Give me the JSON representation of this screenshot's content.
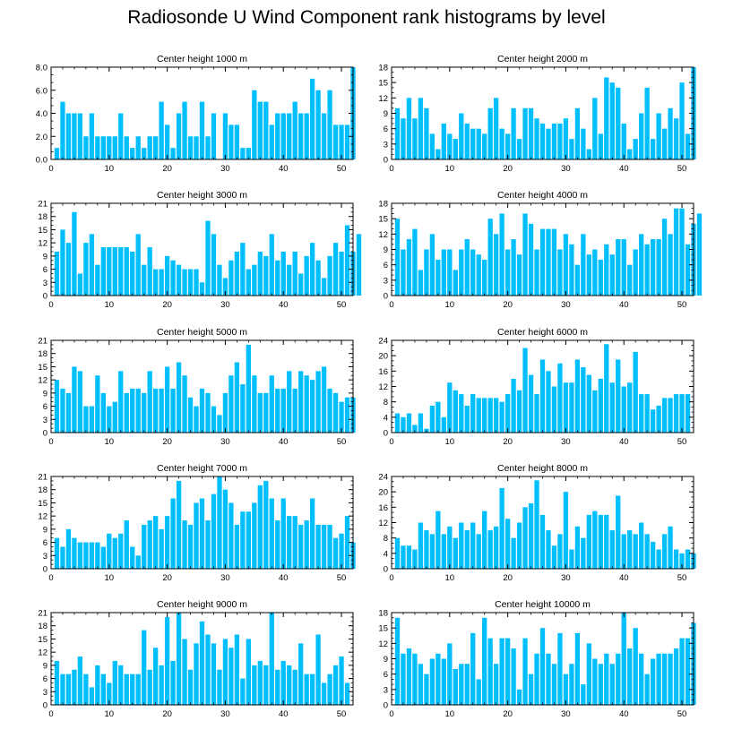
{
  "title": "Radiosonde U Wind Component rank histograms by level",
  "colors": {
    "bar": "#00bfff",
    "axis": "#000000",
    "background": "#ffffff"
  },
  "chart_data": [
    {
      "type": "bar",
      "title": "Center height 1000 m",
      "xlabel": "",
      "ylabel": "",
      "xlim": [
        0,
        52
      ],
      "ylim": [
        0,
        8
      ],
      "xticks": [
        0,
        10,
        20,
        30,
        40,
        50
      ],
      "yticks": [
        "0.0",
        "2.0",
        "4.0",
        "6.0",
        "8.0"
      ],
      "values": [
        1,
        5,
        4,
        4,
        4,
        2,
        4,
        2,
        2,
        2,
        2,
        4,
        2,
        1,
        2,
        1,
        2,
        2,
        5,
        3,
        1,
        4,
        5,
        2,
        2,
        5,
        2,
        4,
        0,
        4,
        3,
        3,
        1,
        1,
        6,
        5,
        5,
        3,
        4,
        4,
        4,
        5,
        4,
        4,
        7,
        6,
        4,
        6,
        3,
        3,
        3,
        8
      ]
    },
    {
      "type": "bar",
      "title": "Center height 2000 m",
      "xlabel": "",
      "ylabel": "",
      "xlim": [
        0,
        52
      ],
      "ylim": [
        0,
        18
      ],
      "xticks": [
        0,
        10,
        20,
        30,
        40,
        50
      ],
      "yticks": [
        "0",
        "3",
        "6",
        "9",
        "12",
        "15",
        "18"
      ],
      "values": [
        10,
        8,
        12,
        8,
        12,
        10,
        5,
        2,
        7,
        5,
        4,
        9,
        7,
        6,
        6,
        5,
        10,
        12,
        6,
        5,
        10,
        4,
        10,
        10,
        8,
        7,
        6,
        7,
        7,
        8,
        4,
        10,
        6,
        2,
        12,
        5,
        16,
        15,
        14,
        7,
        2,
        4,
        9,
        14,
        4,
        9,
        6,
        10,
        8,
        15,
        5,
        18
      ]
    },
    {
      "type": "bar",
      "title": "Center height 3000 m",
      "xlabel": "",
      "ylabel": "",
      "xlim": [
        0,
        52
      ],
      "ylim": [
        0,
        21
      ],
      "xticks": [
        0,
        10,
        20,
        30,
        40,
        50
      ],
      "yticks": [
        "0",
        "3",
        "6",
        "9",
        "12",
        "15",
        "18",
        "21"
      ],
      "values": [
        10,
        15,
        12,
        19,
        5,
        12,
        14,
        7,
        11,
        11,
        11,
        11,
        11,
        10,
        14,
        7,
        11,
        6,
        6,
        9,
        8,
        7,
        6,
        6,
        6,
        3,
        17,
        14,
        7,
        4,
        8,
        10,
        12,
        6,
        7,
        10,
        9,
        14,
        8,
        10,
        7,
        10,
        5,
        9,
        12,
        8,
        4,
        9,
        12,
        10,
        16,
        10,
        14
      ]
    },
    {
      "type": "bar",
      "title": "Center height 4000 m",
      "xlabel": "",
      "ylabel": "",
      "xlim": [
        0,
        52
      ],
      "ylim": [
        0,
        18
      ],
      "xticks": [
        0,
        10,
        20,
        30,
        40,
        50
      ],
      "yticks": [
        "0",
        "3",
        "6",
        "9",
        "12",
        "15",
        "18"
      ],
      "values": [
        15,
        9,
        11,
        13,
        5,
        9,
        12,
        7,
        9,
        9,
        5,
        9,
        11,
        9,
        8,
        7,
        15,
        12,
        16,
        9,
        11,
        8,
        16,
        14,
        9,
        13,
        13,
        13,
        9,
        12,
        10,
        6,
        12,
        8,
        9,
        7,
        10,
        8,
        11,
        11,
        6,
        9,
        12,
        10,
        11,
        11,
        15,
        12,
        17,
        17,
        10,
        14,
        16
      ]
    },
    {
      "type": "bar",
      "title": "Center height 5000 m",
      "xlabel": "",
      "ylabel": "",
      "xlim": [
        0,
        52
      ],
      "ylim": [
        0,
        21
      ],
      "xticks": [
        0,
        10,
        20,
        30,
        40,
        50
      ],
      "yticks": [
        "0",
        "3",
        "6",
        "9",
        "12",
        "15",
        "18",
        "21"
      ],
      "values": [
        12,
        10,
        9,
        15,
        14,
        6,
        6,
        13,
        9,
        6,
        7,
        14,
        9,
        10,
        10,
        9,
        14,
        10,
        10,
        15,
        10,
        16,
        13,
        8,
        6,
        10,
        9,
        6,
        4,
        9,
        13,
        16,
        11,
        20,
        13,
        9,
        9,
        13,
        10,
        10,
        14,
        10,
        14,
        13,
        12,
        14,
        15,
        10,
        9,
        7,
        8,
        8
      ]
    },
    {
      "type": "bar",
      "title": "Center height 6000 m",
      "xlabel": "",
      "ylabel": "",
      "xlim": [
        0,
        52
      ],
      "ylim": [
        0,
        24
      ],
      "xticks": [
        0,
        10,
        20,
        30,
        40,
        50
      ],
      "yticks": [
        "0",
        "4",
        "8",
        "12",
        "16",
        "20",
        "24"
      ],
      "values": [
        5,
        4,
        5,
        2,
        5,
        1,
        7,
        8,
        4,
        13,
        11,
        10,
        7,
        10,
        9,
        9,
        9,
        9,
        8,
        10,
        14,
        11,
        22,
        15,
        10,
        19,
        16,
        12,
        18,
        13,
        13,
        19,
        17,
        15,
        11,
        14,
        23,
        13,
        19,
        12,
        13,
        21,
        10,
        10,
        6,
        7,
        9,
        9,
        10,
        10,
        10
      ]
    },
    {
      "type": "bar",
      "title": "Center height 7000 m",
      "xlabel": "",
      "ylabel": "",
      "xlim": [
        0,
        52
      ],
      "ylim": [
        0,
        21
      ],
      "xticks": [
        0,
        10,
        20,
        30,
        40,
        50
      ],
      "yticks": [
        "0",
        "3",
        "6",
        "9",
        "12",
        "15",
        "18",
        "21"
      ],
      "values": [
        7,
        5,
        9,
        7,
        6,
        6,
        6,
        6,
        5,
        8,
        7,
        8,
        11,
        5,
        3,
        10,
        11,
        12,
        9,
        12,
        16,
        20,
        11,
        10,
        15,
        16,
        11,
        17,
        21,
        18,
        15,
        10,
        13,
        13,
        15,
        19,
        20,
        16,
        11,
        16,
        12,
        12,
        10,
        11,
        16,
        10,
        10,
        10,
        7,
        8,
        12,
        6
      ]
    },
    {
      "type": "bar",
      "title": "Center height 8000 m",
      "xlabel": "",
      "ylabel": "",
      "xlim": [
        0,
        52
      ],
      "ylim": [
        0,
        24
      ],
      "xticks": [
        0,
        10,
        20,
        30,
        40,
        50
      ],
      "yticks": [
        "0",
        "4",
        "8",
        "12",
        "16",
        "20",
        "24"
      ],
      "values": [
        8,
        6,
        6,
        5,
        12,
        10,
        9,
        15,
        9,
        11,
        8,
        12,
        10,
        12,
        9,
        15,
        10,
        11,
        21,
        13,
        8,
        12,
        16,
        17,
        23,
        14,
        10,
        6,
        9,
        20,
        5,
        11,
        8,
        14,
        15,
        14,
        14,
        10,
        19,
        9,
        10,
        9,
        12,
        9,
        7,
        5,
        9,
        11,
        5,
        4,
        5,
        4
      ]
    },
    {
      "type": "bar",
      "title": "Center height 9000 m",
      "xlabel": "",
      "ylabel": "",
      "xlim": [
        0,
        52
      ],
      "ylim": [
        0,
        21
      ],
      "xticks": [
        0,
        10,
        20,
        30,
        40,
        50
      ],
      "yticks": [
        "0",
        "3",
        "6",
        "9",
        "12",
        "15",
        "18",
        "21"
      ],
      "values": [
        10,
        7,
        7,
        8,
        11,
        7,
        4,
        9,
        7,
        5,
        10,
        9,
        7,
        7,
        7,
        17,
        8,
        13,
        9,
        20,
        10,
        21,
        15,
        8,
        14,
        19,
        16,
        14,
        8,
        15,
        13,
        16,
        6,
        15,
        9,
        10,
        9,
        21,
        8,
        10,
        9,
        8,
        14,
        7,
        7,
        16,
        5,
        7,
        9,
        11,
        5
      ]
    },
    {
      "type": "bar",
      "title": "Center height 10000 m",
      "xlabel": "",
      "ylabel": "",
      "xlim": [
        0,
        52
      ],
      "ylim": [
        0,
        18
      ],
      "xticks": [
        0,
        10,
        20,
        30,
        40,
        50
      ],
      "yticks": [
        "0",
        "3",
        "6",
        "9",
        "12",
        "15",
        "18"
      ],
      "values": [
        17,
        10,
        11,
        10,
        8,
        6,
        9,
        10,
        9,
        12,
        7,
        8,
        8,
        14,
        5,
        17,
        13,
        8,
        13,
        13,
        11,
        3,
        13,
        6,
        10,
        15,
        10,
        8,
        14,
        6,
        8,
        14,
        4,
        12,
        9,
        8,
        10,
        8,
        10,
        18,
        11,
        15,
        10,
        6,
        9,
        10,
        10,
        10,
        11,
        13,
        13,
        16
      ]
    }
  ]
}
